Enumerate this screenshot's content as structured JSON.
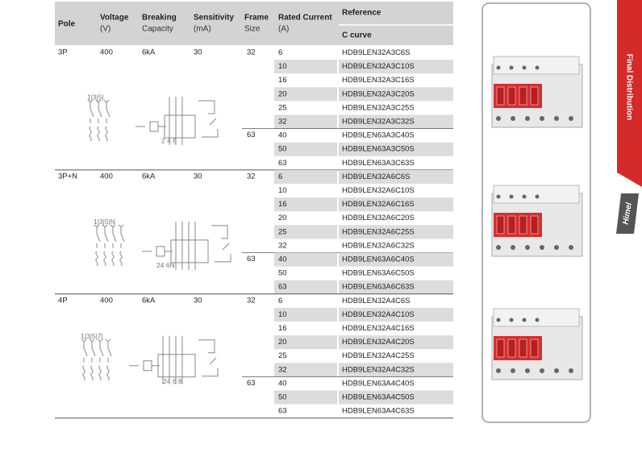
{
  "table": {
    "headers": [
      [
        "Pole"
      ],
      [
        "Voltage",
        "(V)"
      ],
      [
        "Breaking",
        "Capacity"
      ],
      [
        "Sensitivity",
        "(mA)"
      ],
      [
        "Frame",
        "Size"
      ],
      [
        "Rated Current",
        "(A)"
      ]
    ],
    "reference_header": "Reference",
    "reference_subheader": "C curve",
    "groups": [
      {
        "pole": "3P",
        "voltage": 400,
        "breaking": "6kA",
        "sensitivity": 30,
        "diagram_top": "1|3|5|",
        "diagram_bottom": "2 4 6",
        "frames": [
          {
            "size": 32,
            "rows": [
              [
                6,
                "HDB9LEN32A3C6S"
              ],
              [
                10,
                "HDB9LEN32A3C10S"
              ],
              [
                16,
                "HDB9LEN32A3C16S"
              ],
              [
                20,
                "HDB9LEN32A3C20S"
              ],
              [
                25,
                "HDB9LEN32A3C25S"
              ],
              [
                32,
                "HDB9LEN32A3C32S"
              ]
            ]
          },
          {
            "size": 63,
            "rows": [
              [
                40,
                "HDB9LEN63A3C40S"
              ],
              [
                50,
                "HDB9LEN63A3C50S"
              ],
              [
                63,
                "HDB9LEN63A3C63S"
              ]
            ]
          }
        ]
      },
      {
        "pole": "3P+N",
        "voltage": 400,
        "breaking": "6kA",
        "sensitivity": 30,
        "diagram_top": "1|3|5|N",
        "diagram_bottom": "24 6N",
        "frames": [
          {
            "size": 32,
            "rows": [
              [
                6,
                "HDB9LEN32A6C6S"
              ],
              [
                10,
                "HDB9LEN32A6C10S"
              ],
              [
                16,
                "HDB9LEN32A6C16S"
              ],
              [
                20,
                "HDB9LEN32A6C20S"
              ],
              [
                25,
                "HDB9LEN32A6C25S"
              ],
              [
                32,
                "HDB9LEN32A6C32S"
              ]
            ]
          },
          {
            "size": 63,
            "rows": [
              [
                40,
                "HDB9LEN63A6C40S"
              ],
              [
                50,
                "HDB9LEN63A6C50S"
              ],
              [
                63,
                "HDB9LEN63A6C63S"
              ]
            ]
          }
        ]
      },
      {
        "pole": "4P",
        "voltage": 400,
        "breaking": "6kA",
        "sensitivity": 30,
        "diagram_top": "1|3|5|7|",
        "diagram_bottom": "24 6 8",
        "frames": [
          {
            "size": 32,
            "rows": [
              [
                6,
                "HDB9LEN32A4C6S"
              ],
              [
                10,
                "HDB9LEN32A4C10S"
              ],
              [
                16,
                "HDB9LEN32A4C16S"
              ],
              [
                20,
                "HDB9LEN32A4C20S"
              ],
              [
                25,
                "HDB9LEN32A4C25S"
              ],
              [
                32,
                "HDB9LEN32A4C32S"
              ]
            ]
          },
          {
            "size": 63,
            "rows": [
              [
                40,
                "HDB9LEN63A4C40S"
              ],
              [
                50,
                "HDB9LEN63A4C50S"
              ],
              [
                63,
                "HDB9LEN63A4C63S"
              ]
            ]
          }
        ]
      }
    ]
  },
  "side_tab": "Final Distribution",
  "brand": "Himel"
}
